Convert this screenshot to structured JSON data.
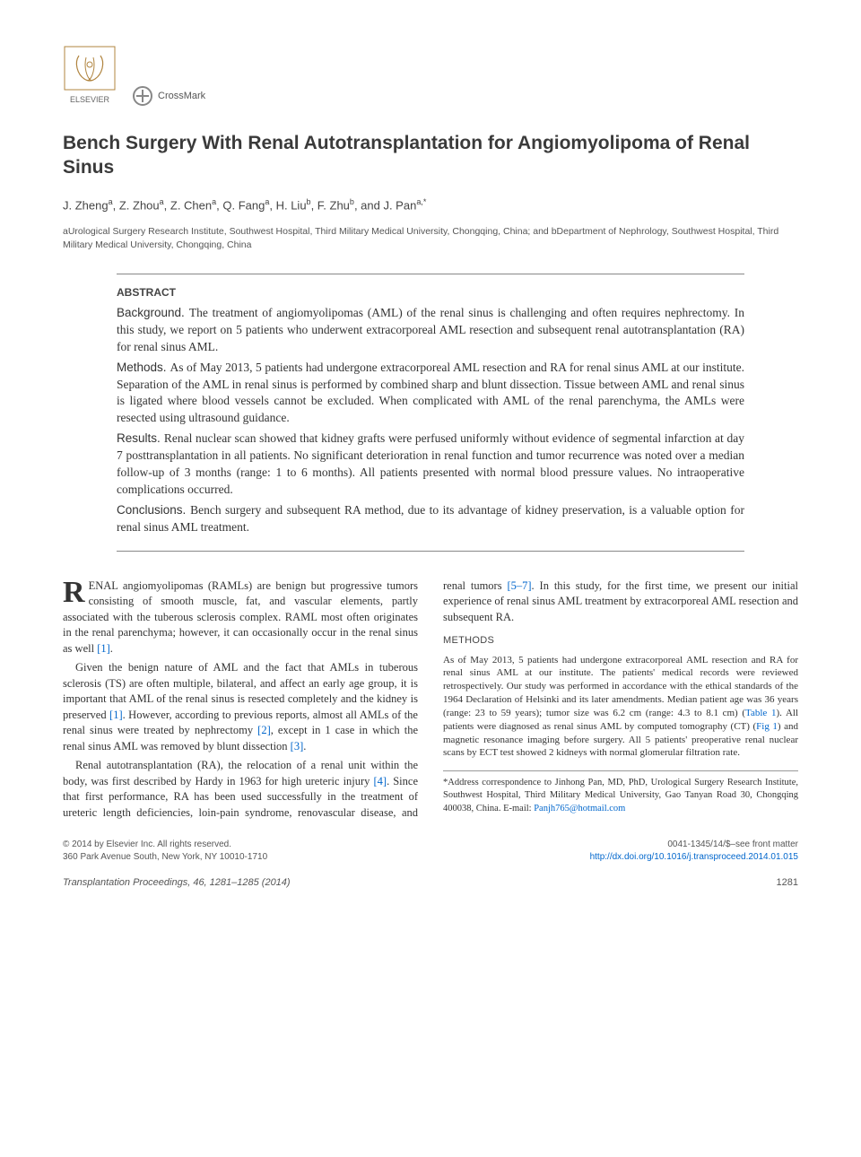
{
  "logos": {
    "elsevier_label": "ELSEVIER",
    "crossmark_label": "CrossMark"
  },
  "title": "Bench Surgery With Renal Autotransplantation for Angiomyolipoma of Renal Sinus",
  "authors_html_parts": [
    {
      "txt": "J. Zheng",
      "sup": "a"
    },
    {
      "txt": ", Z. Zhou",
      "sup": "a"
    },
    {
      "txt": ", Z. Chen",
      "sup": "a"
    },
    {
      "txt": ", Q. Fang",
      "sup": "a"
    },
    {
      "txt": ", H. Liu",
      "sup": "b"
    },
    {
      "txt": ", F. Zhu",
      "sup": "b"
    },
    {
      "txt": ", and J. Pan",
      "sup": "a,*"
    }
  ],
  "affiliations": "aUrological Surgery Research Institute, Southwest Hospital, Third Military Medical University, Chongqing, China; and bDepartment of Nephrology, Southwest Hospital, Third Military Medical University, Chongqing, China",
  "abstract": {
    "heading": "ABSTRACT",
    "sections": [
      {
        "label": "Background.",
        "text": "The treatment of angiomyolipomas (AML) of the renal sinus is challenging and often requires nephrectomy. In this study, we report on 5 patients who underwent extracorporeal AML resection and subsequent renal autotransplantation (RA) for renal sinus AML."
      },
      {
        "label": "Methods.",
        "text": "As of May 2013, 5 patients had undergone extracorporeal AML resection and RA for renal sinus AML at our institute. Separation of the AML in renal sinus is performed by combined sharp and blunt dissection. Tissue between AML and renal sinus is ligated where blood vessels cannot be excluded. When complicated with AML of the renal parenchyma, the AMLs were resected using ultrasound guidance."
      },
      {
        "label": "Results.",
        "text": "Renal nuclear scan showed that kidney grafts were perfused uniformly without evidence of segmental infarction at day 7 posttransplantation in all patients. No significant deterioration in renal function and tumor recurrence was noted over a median follow-up of 3 months (range: 1 to 6 months). All patients presented with normal blood pressure values. No intraoperative complications occurred."
      },
      {
        "label": "Conclusions.",
        "text": "Bench surgery and subsequent RA method, due to its advantage of kidney preservation, is a valuable option for renal sinus AML treatment."
      }
    ]
  },
  "body": {
    "para1_dropcap": "R",
    "para1": "ENAL angiomyolipomas (RAMLs) are benign but progressive tumors consisting of smooth muscle, fat, and vascular elements, partly associated with the tuberous sclerosis complex. RAML most often originates in the renal parenchyma; however, it can occasionally occur in the renal sinus as well ",
    "para1_ref": "[1]",
    "para1_tail": ".",
    "para2a": "Given the benign nature of AML and the fact that AMLs in tuberous sclerosis (TS) are often multiple, bilateral, and affect an early age group, it is important that AML of the renal sinus is resected completely and the kidney is preserved ",
    "para2_ref1": "[1]",
    "para2b": ". However, according to previous reports, almost all AMLs of the renal sinus were treated by nephrectomy ",
    "para2_ref2": "[2]",
    "para2c": ", except in 1 case in which the renal sinus AML was removed by blunt dissection ",
    "para2_ref3": "[3]",
    "para2d": ".",
    "para3a": "Renal autotransplantation (RA), the relocation of a renal unit within the body, was first described by Hardy in 1963 for high ureteric injury ",
    "para3_ref1": "[4]",
    "para3b": ". Since that first performance, RA has been used successfully in the treatment of ureteric length deficiencies, loin-pain syndrome, renovascular disease, and renal tumors ",
    "para3_ref2": "[5–7]",
    "para3c": ". In this study, for the first time, we ",
    "para3_cont": "present our initial experience of renal sinus AML treatment by extracorporeal AML resection and subsequent RA.",
    "methods_heading": "METHODS",
    "methods_a": "As of May 2013, 5 patients had undergone extracorporeal AML resection and RA for renal sinus AML at our institute. The patients' medical records were reviewed retrospectively. Our study was performed in accordance with the ethical standards of the 1964 Declaration of Helsinki and its later amendments. Median patient age was 36 years (range: 23 to 59 years); tumor size was 6.2 cm (range: 4.3 to 8.1 cm) (",
    "methods_table_ref": "Table 1",
    "methods_b": "). All patients were diagnosed as renal sinus AML by computed tomography (CT) (",
    "methods_fig_ref": "Fig 1",
    "methods_c": ") and magnetic resonance imaging before surgery. All 5 patients' preoperative renal nuclear scans by ECT test showed 2 kidneys with normal glomerular filtration rate."
  },
  "correspondence": {
    "text": "*Address correspondence to Jinhong Pan, MD, PhD, Urological Surgery Research Institute, Southwest Hospital, Third Military Medical University, Gao Tanyan Road 30, Chongqing 400038, China. E-mail: ",
    "email": "Panjh765@hotmail.com"
  },
  "footer": {
    "left_line1": "© 2014 by Elsevier Inc. All rights reserved.",
    "left_line2": "360 Park Avenue South, New York, NY 10010-1710",
    "right_line1": "0041-1345/14/$–see front matter",
    "right_doi": "http://dx.doi.org/10.1016/j.transproceed.2014.01.015"
  },
  "bottom": {
    "citation": "Transplantation Proceedings, 46, 1281–1285 (2014)",
    "page": "1281"
  },
  "colors": {
    "link": "#0066cc",
    "text": "#333333",
    "rule": "#888888"
  }
}
